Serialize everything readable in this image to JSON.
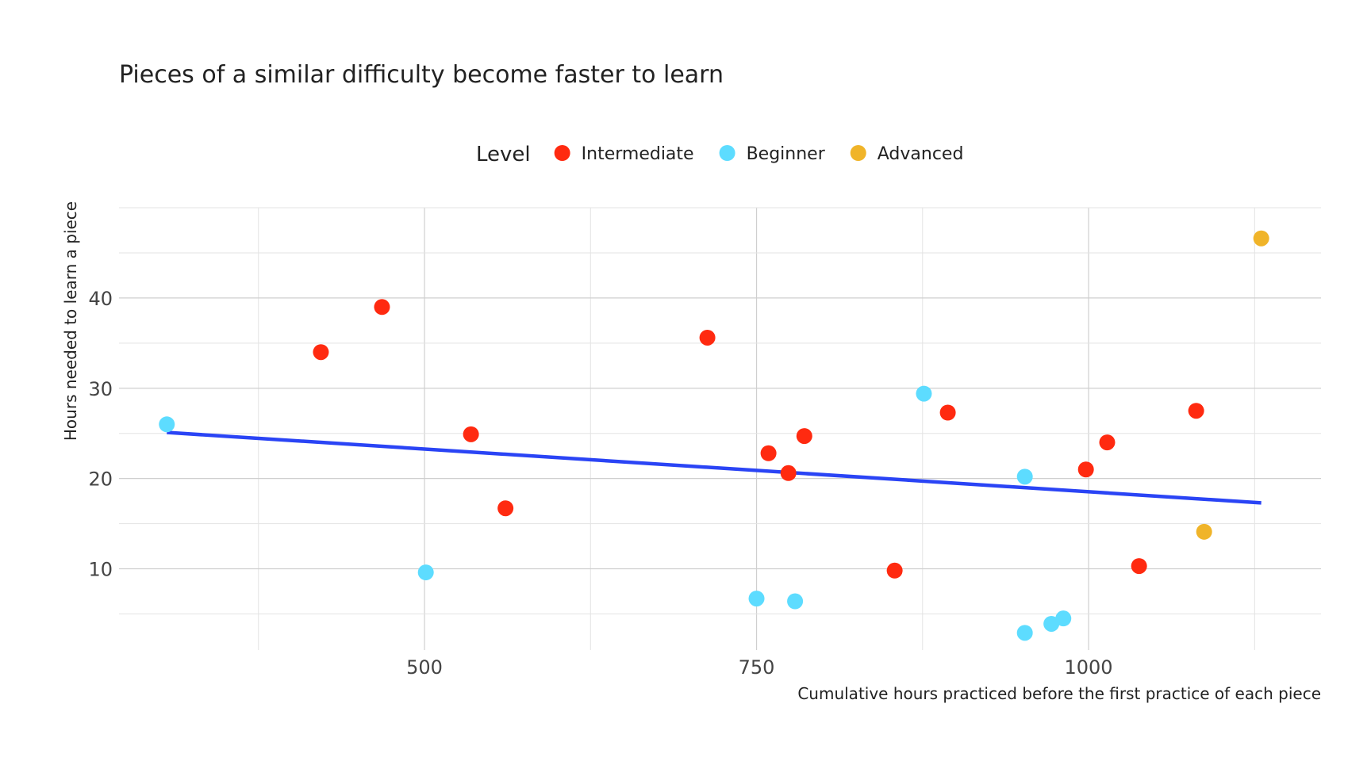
{
  "chart_data": {
    "type": "scatter",
    "title": "Pieces of a similar difficulty become faster to learn",
    "xlabel": "Cumulative hours practiced before the first practice of each piece",
    "ylabel": "Hours needed to learn a piece",
    "xlim": [
      270,
      1175
    ],
    "ylim": [
      1,
      50
    ],
    "x_ticks": [
      500,
      750,
      1000
    ],
    "y_ticks": [
      10,
      20,
      30,
      40
    ],
    "grid": true,
    "legend": {
      "title": "Level",
      "placement": "top-center",
      "entries": [
        "Intermediate",
        "Beginner",
        "Advanced"
      ]
    },
    "colors": {
      "Intermediate": "#ff2a10",
      "Beginner": "#5ddcff",
      "Advanced": "#f0b429",
      "trend": "#2a44f5"
    },
    "series": [
      {
        "name": "Intermediate",
        "points": [
          {
            "x": 422,
            "y": 34.0
          },
          {
            "x": 468,
            "y": 39.0
          },
          {
            "x": 535,
            "y": 24.9
          },
          {
            "x": 561,
            "y": 16.7
          },
          {
            "x": 713,
            "y": 35.6
          },
          {
            "x": 759,
            "y": 22.8
          },
          {
            "x": 774,
            "y": 20.6
          },
          {
            "x": 786,
            "y": 24.7
          },
          {
            "x": 854,
            "y": 9.8
          },
          {
            "x": 894,
            "y": 27.3
          },
          {
            "x": 998,
            "y": 21.0
          },
          {
            "x": 1014,
            "y": 24.0
          },
          {
            "x": 1038,
            "y": 10.3
          },
          {
            "x": 1081,
            "y": 27.5
          }
        ]
      },
      {
        "name": "Beginner",
        "points": [
          {
            "x": 306,
            "y": 26.0
          },
          {
            "x": 501,
            "y": 9.6
          },
          {
            "x": 750,
            "y": 6.7
          },
          {
            "x": 779,
            "y": 6.4
          },
          {
            "x": 876,
            "y": 29.4
          },
          {
            "x": 952,
            "y": 20.2
          },
          {
            "x": 952,
            "y": 2.9
          },
          {
            "x": 972,
            "y": 3.9
          },
          {
            "x": 981,
            "y": 4.5
          }
        ]
      },
      {
        "name": "Advanced",
        "points": [
          {
            "x": 1087,
            "y": 14.1
          },
          {
            "x": 1130,
            "y": 46.6
          }
        ]
      }
    ],
    "trend_line": {
      "x": [
        306,
        1130
      ],
      "y": [
        25.1,
        17.3
      ]
    }
  }
}
